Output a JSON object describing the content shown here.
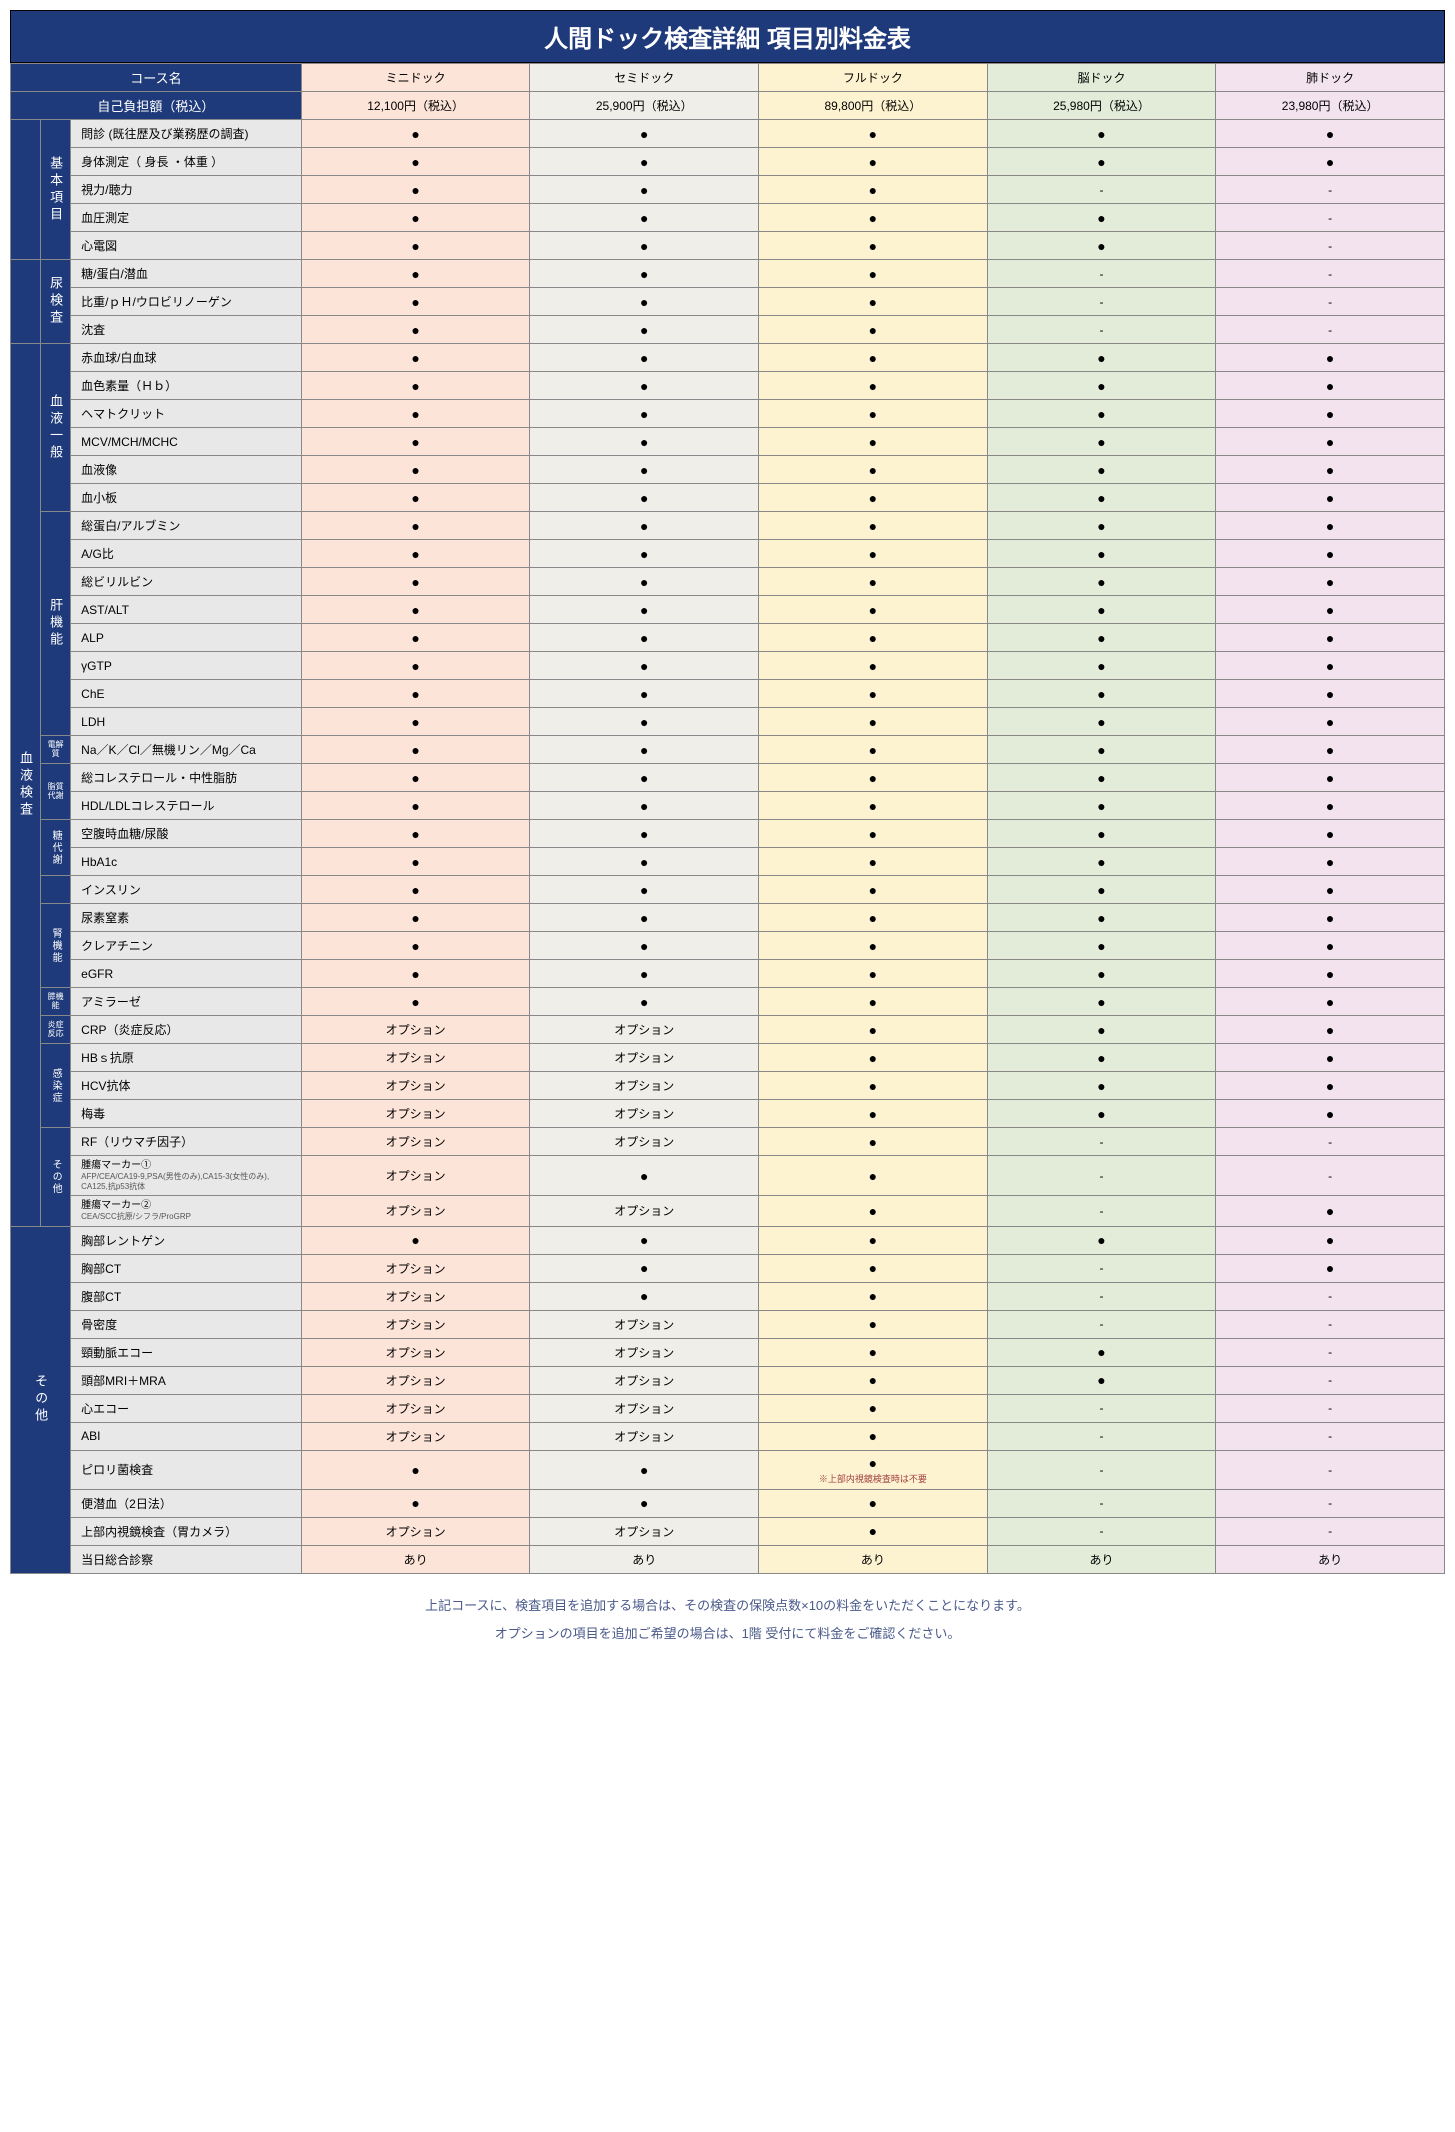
{
  "title": "人間ドック検査詳細 項目別料金表",
  "headers": {
    "course_name": "コース名",
    "self_pay": "自己負担額（税込）"
  },
  "courses": [
    {
      "name": "ミニドック",
      "price": "12,100円（税込）"
    },
    {
      "name": "セミドック",
      "price": "25,900円（税込）"
    },
    {
      "name": "フルドック",
      "price": "89,800円（税込）"
    },
    {
      "name": "脳ドック",
      "price": "25,980円（税込）"
    },
    {
      "name": "肺ドック",
      "price": "23,980円（税込）"
    }
  ],
  "marks": {
    "dot": "●",
    "dash": "-",
    "opt": "オプション",
    "yes": "あり"
  },
  "sections": [
    {
      "cat1": "",
      "cat2": "基本項目",
      "cat2_rows": 5,
      "rows": [
        {
          "label": "問診 (既往歴及び業務歴の調査)",
          "v": [
            "dot",
            "dot",
            "dot",
            "dot",
            "dot"
          ]
        },
        {
          "label": "身体測定（ 身長 ・体重 ）",
          "v": [
            "dot",
            "dot",
            "dot",
            "dot",
            "dot"
          ]
        },
        {
          "label": "視力/聴力",
          "v": [
            "dot",
            "dot",
            "dot",
            "dash",
            "dash"
          ]
        },
        {
          "label": "血圧測定",
          "v": [
            "dot",
            "dot",
            "dot",
            "dot",
            "dash"
          ]
        },
        {
          "label": "心電図",
          "v": [
            "dot",
            "dot",
            "dot",
            "dot",
            "dash"
          ]
        }
      ]
    },
    {
      "cat1": "",
      "cat2": "尿検査",
      "cat2_rows": 3,
      "rows": [
        {
          "label": "糖/蛋白/潜血",
          "v": [
            "dot",
            "dot",
            "dot",
            "dash",
            "dash"
          ]
        },
        {
          "label": "比重/ｐＨ/ウロビリノーゲン",
          "v": [
            "dot",
            "dot",
            "dot",
            "dash",
            "dash"
          ]
        },
        {
          "label": "沈査",
          "v": [
            "dot",
            "dot",
            "dot",
            "dash",
            "dash"
          ]
        }
      ]
    },
    {
      "cat1": "血液検査",
      "cat1_rows": 28,
      "groups": [
        {
          "cat2": "血液一般",
          "cat2_rows": 6,
          "rows": [
            {
              "label": "赤血球/白血球",
              "v": [
                "dot",
                "dot",
                "dot",
                "dot",
                "dot"
              ]
            },
            {
              "label": "血色素量（Ｈｂ）",
              "v": [
                "dot",
                "dot",
                "dot",
                "dot",
                "dot"
              ]
            },
            {
              "label": "ヘマトクリット",
              "v": [
                "dot",
                "dot",
                "dot",
                "dot",
                "dot"
              ]
            },
            {
              "label": "MCV/MCH/MCHC",
              "v": [
                "dot",
                "dot",
                "dot",
                "dot",
                "dot"
              ]
            },
            {
              "label": "血液像",
              "v": [
                "dot",
                "dot",
                "dot",
                "dot",
                "dot"
              ]
            },
            {
              "label": "血小板",
              "v": [
                "dot",
                "dot",
                "dot",
                "dot",
                "dot"
              ]
            }
          ]
        },
        {
          "cat2": "肝機能",
          "cat2_rows": 8,
          "rows": [
            {
              "label": "総蛋白/アルブミン",
              "v": [
                "dot",
                "dot",
                "dot",
                "dot",
                "dot"
              ]
            },
            {
              "label": "A/G比",
              "v": [
                "dot",
                "dot",
                "dot",
                "dot",
                "dot"
              ]
            },
            {
              "label": "総ビリルビン",
              "v": [
                "dot",
                "dot",
                "dot",
                "dot",
                "dot"
              ]
            },
            {
              "label": "AST/ALT",
              "v": [
                "dot",
                "dot",
                "dot",
                "dot",
                "dot"
              ]
            },
            {
              "label": "ALP",
              "v": [
                "dot",
                "dot",
                "dot",
                "dot",
                "dot"
              ]
            },
            {
              "label": "γGTP",
              "v": [
                "dot",
                "dot",
                "dot",
                "dot",
                "dot"
              ]
            },
            {
              "label": "ChE",
              "v": [
                "dot",
                "dot",
                "dot",
                "dot",
                "dot"
              ]
            },
            {
              "label": "LDH",
              "v": [
                "dot",
                "dot",
                "dot",
                "dot",
                "dot"
              ]
            }
          ]
        },
        {
          "cat2_tiny": "電解質",
          "cat2_rows": 1,
          "rows": [
            {
              "label": "Na／K／Cl／無機リン／Mg／Ca",
              "v": [
                "dot",
                "dot",
                "dot",
                "dot",
                "dot"
              ]
            }
          ]
        },
        {
          "cat2_tiny": "脂質代謝",
          "cat2_rows": 2,
          "rows": [
            {
              "label": "総コレステロール・中性脂肪",
              "v": [
                "dot",
                "dot",
                "dot",
                "dot",
                "dot"
              ]
            },
            {
              "label": "HDL/LDLコレステロール",
              "v": [
                "dot",
                "dot",
                "dot",
                "dot",
                "dot"
              ]
            }
          ]
        },
        {
          "cat2": "糖代謝",
          "cat2_rows": 2,
          "cat2_class": "vcat-small",
          "rows": [
            {
              "label": "空腹時血糖/尿酸",
              "v": [
                "dot",
                "dot",
                "dot",
                "dot",
                "dot"
              ]
            },
            {
              "label": "HbA1c",
              "v": [
                "dot",
                "dot",
                "dot",
                "dot",
                "dot"
              ]
            }
          ]
        },
        {
          "cat2_blank": true,
          "cat2_rows": 1,
          "rows": [
            {
              "label": "インスリン",
              "v": [
                "dot",
                "dot",
                "dot",
                "dot",
                "dot"
              ]
            }
          ]
        },
        {
          "cat2": "腎機能",
          "cat2_rows": 3,
          "cat2_class": "vcat-small",
          "rows": [
            {
              "label": "尿素窒素",
              "v": [
                "dot",
                "dot",
                "dot",
                "dot",
                "dot"
              ]
            },
            {
              "label": "クレアチニン",
              "v": [
                "dot",
                "dot",
                "dot",
                "dot",
                "dot"
              ]
            },
            {
              "label": "eGFR",
              "v": [
                "dot",
                "dot",
                "dot",
                "dot",
                "dot"
              ]
            }
          ]
        },
        {
          "cat2_tiny": "膵機能",
          "cat2_rows": 1,
          "rows": [
            {
              "label": "アミラーゼ",
              "v": [
                "dot",
                "dot",
                "dot",
                "dot",
                "dot"
              ]
            }
          ]
        },
        {
          "cat2_tiny": "炎症 反応",
          "cat2_rows": 1,
          "rows": [
            {
              "label": "CRP（炎症反応）",
              "v": [
                "opt",
                "opt",
                "dot",
                "dot",
                "dot"
              ]
            }
          ]
        },
        {
          "cat2": "感染症",
          "cat2_rows": 3,
          "cat2_class": "vcat-small",
          "rows": [
            {
              "label": "HBｓ抗原",
              "v": [
                "opt",
                "opt",
                "dot",
                "dot",
                "dot"
              ]
            },
            {
              "label": "HCV抗体",
              "v": [
                "opt",
                "opt",
                "dot",
                "dot",
                "dot"
              ]
            },
            {
              "label": "梅毒",
              "v": [
                "opt",
                "opt",
                "dot",
                "dot",
                "dot"
              ]
            }
          ]
        }
      ]
    },
    {
      "cat1_cont": true,
      "groups": [
        {
          "cat2": "その他",
          "cat2_rows": 3,
          "cat2_class": "vcat-small",
          "rows": [
            {
              "label": "RF（リウマチ因子）",
              "v": [
                "opt",
                "opt",
                "dot",
                "dash",
                "dash"
              ]
            },
            {
              "label": "腫瘍マーカー①",
              "sublabel": "AFP/CEA/CA19-9,PSA(男性のみ),CA15-3(女性のみ), CA125,抗p53抗体",
              "v": [
                "opt",
                "dot",
                "dot",
                "dash",
                "dash"
              ]
            },
            {
              "label": "腫瘍マーカー②",
              "sublabel": "CEA/SCC抗原/シフラ/ProGRP",
              "v": [
                "opt",
                "opt",
                "dot",
                "dash",
                "dot"
              ]
            }
          ]
        }
      ]
    },
    {
      "cat1": "",
      "cat2": "その他",
      "cat2_rows": 12,
      "cat2_colspan": 2,
      "rows": [
        {
          "label": "胸部レントゲン",
          "v": [
            "dot",
            "dot",
            "dot",
            "dot",
            "dot"
          ]
        },
        {
          "label": "胸部CT",
          "v": [
            "opt",
            "dot",
            "dot",
            "dash",
            "dot"
          ]
        },
        {
          "label": "腹部CT",
          "v": [
            "opt",
            "dot",
            "dot",
            "dash",
            "dash"
          ]
        },
        {
          "label": "骨密度",
          "v": [
            "opt",
            "opt",
            "dot",
            "dash",
            "dash"
          ]
        },
        {
          "label": "頸動脈エコー",
          "v": [
            "opt",
            "opt",
            "dot",
            "dot",
            "dash"
          ]
        },
        {
          "label": "頭部MRI＋MRA",
          "v": [
            "opt",
            "opt",
            "dot",
            "dot",
            "dash"
          ]
        },
        {
          "label": "心エコー",
          "v": [
            "opt",
            "opt",
            "dot",
            "dash",
            "dash"
          ]
        },
        {
          "label": "ABI",
          "v": [
            "opt",
            "opt",
            "dot",
            "dash",
            "dash"
          ]
        },
        {
          "label": "ピロリ菌検査",
          "v": [
            "dot",
            "dot",
            "dot_note",
            "dash",
            "dash"
          ],
          "note3": "※上部内視鏡検査時は不要"
        },
        {
          "label": "便潜血（2日法）",
          "v": [
            "dot",
            "dot",
            "dot",
            "dash",
            "dash"
          ]
        },
        {
          "label": "上部内視鏡検査（胃カメラ）",
          "v": [
            "opt",
            "opt",
            "dot",
            "dash",
            "dash"
          ]
        },
        {
          "label": "当日総合診察",
          "v": [
            "yes",
            "yes",
            "yes",
            "yes",
            "yes"
          ]
        }
      ]
    }
  ],
  "footer": [
    "上記コースに、検査項目を追加する場合は、その検査の保険点数×10の料金をいただくことになります。",
    "オプションの項目を追加ご希望の場合は、1階 受付にて料金をご確認ください。"
  ]
}
